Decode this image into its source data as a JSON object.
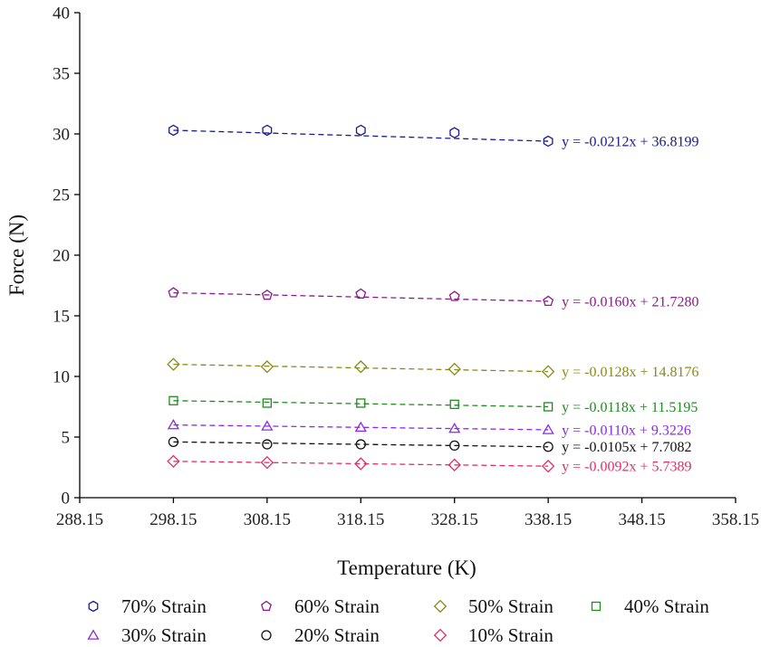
{
  "chart_data": {
    "type": "scatter",
    "xlabel": "Temperature (K)",
    "ylabel": "Force (N)",
    "xlim": [
      288.15,
      358.15
    ],
    "ylim": [
      0,
      40
    ],
    "xticks": [
      "288.15",
      "298.15",
      "308.15",
      "318.15",
      "328.15",
      "338.15",
      "348.15",
      "358.15"
    ],
    "yticks": [
      "0",
      "5",
      "10",
      "15",
      "20",
      "25",
      "30",
      "35",
      "40"
    ],
    "legend_position": "bottom",
    "x": [
      298.15,
      308.15,
      318.15,
      328.15,
      338.15
    ],
    "series": [
      {
        "name": "70% Strain",
        "marker": "hexagon",
        "color": "#1a1a8c",
        "values": [
          30.3,
          30.3,
          30.3,
          30.1,
          29.4
        ],
        "slope": -0.0212,
        "intercept": 36.8199,
        "equation": "y = -0.0212x + 36.8199"
      },
      {
        "name": "60% Strain",
        "marker": "pentagon",
        "color": "#8b1a8b",
        "values": [
          16.9,
          16.7,
          16.8,
          16.6,
          16.2
        ],
        "slope": -0.016,
        "intercept": 21.728,
        "equation": "y = -0.0160x + 21.7280"
      },
      {
        "name": "50% Strain",
        "marker": "diamond",
        "color": "#8a8a1a",
        "values": [
          11.0,
          10.8,
          10.8,
          10.6,
          10.4
        ],
        "slope": -0.0128,
        "intercept": 14.8176,
        "equation": "y = -0.0128x + 14.8176"
      },
      {
        "name": "40% Strain",
        "marker": "square",
        "color": "#1f8c1f",
        "values": [
          8.0,
          7.8,
          7.8,
          7.7,
          7.5
        ],
        "slope": -0.0118,
        "intercept": 11.5195,
        "equation": "y = -0.0118x + 11.5195"
      },
      {
        "name": "30% Strain",
        "marker": "triangle",
        "color": "#8a2be2",
        "values": [
          6.0,
          5.9,
          5.8,
          5.7,
          5.6
        ],
        "slope": -0.011,
        "intercept": 9.3226,
        "equation": "y = -0.0110x + 9.3226"
      },
      {
        "name": "20% Strain",
        "marker": "circle",
        "color": "#111111",
        "values": [
          4.6,
          4.4,
          4.4,
          4.3,
          4.2
        ],
        "slope": -0.0105,
        "intercept": 7.7082,
        "equation": "y = -0.0105x + 7.7082"
      },
      {
        "name": "10% Strain",
        "marker": "diamond",
        "color": "#e0306a",
        "values": [
          3.0,
          2.9,
          2.8,
          2.7,
          2.6
        ],
        "slope": -0.0092,
        "intercept": 5.7389,
        "equation": "y = -0.0092x + 5.7389"
      }
    ]
  }
}
